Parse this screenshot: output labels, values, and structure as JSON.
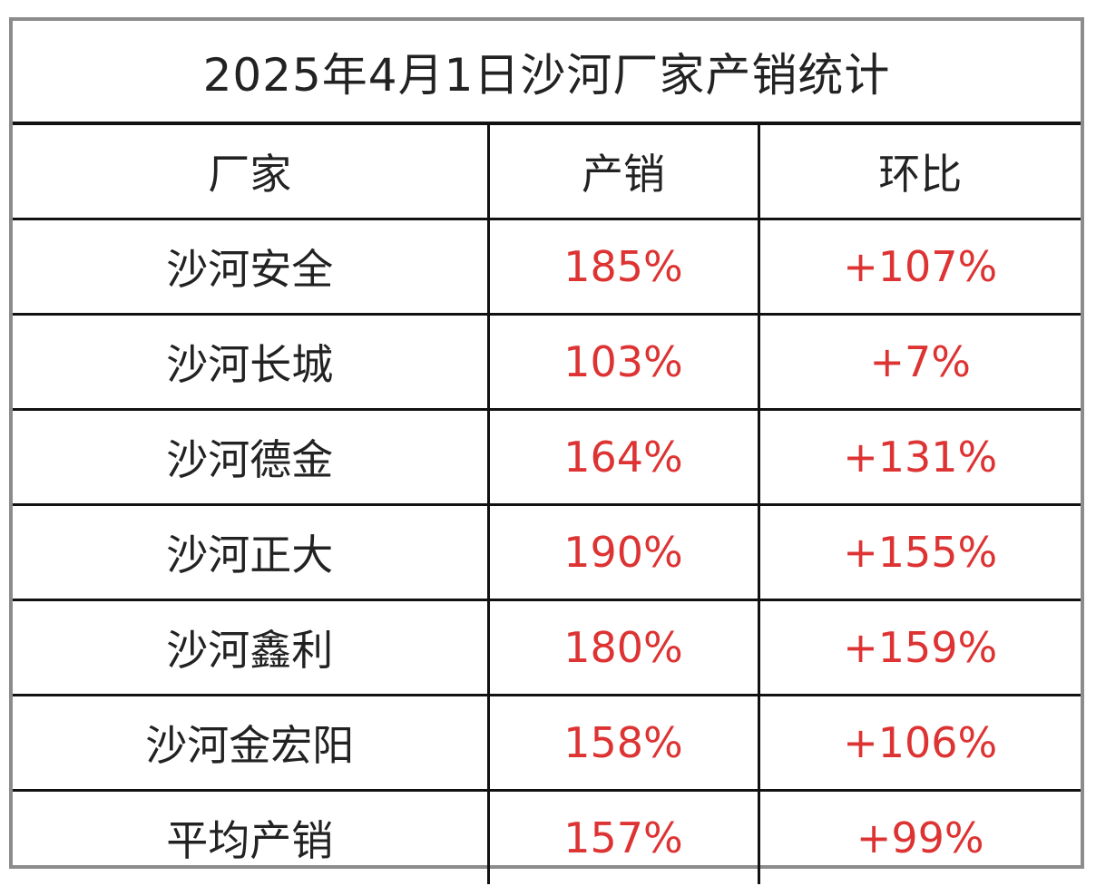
{
  "title": "2025年4月1日沙河厂家产销统计",
  "headers": [
    "厂家",
    "产销",
    "环比"
  ],
  "rows": [
    {
      "name": "沙河安全",
      "output": "185%",
      "change": "+107%"
    },
    {
      "name": "沙河长城",
      "output": "103%",
      "change": "+7%"
    },
    {
      "name": "沙河德金",
      "output": "164%",
      "change": "+131%"
    },
    {
      "name": "沙河正大",
      "output": "190%",
      "change": "+155%"
    },
    {
      "name": "沙河鑫利",
      "output": "180%",
      "change": "+159%"
    },
    {
      "name": "沙河金宏阳",
      "output": "158%",
      "change": "+106%"
    },
    {
      "name": "平均产销",
      "output": "157%",
      "change": "+99%"
    }
  ],
  "colors": {
    "text": "#222222",
    "value_red": "#dd3333",
    "grid_line": "#111111",
    "outer_border": "#8c8c8c"
  }
}
